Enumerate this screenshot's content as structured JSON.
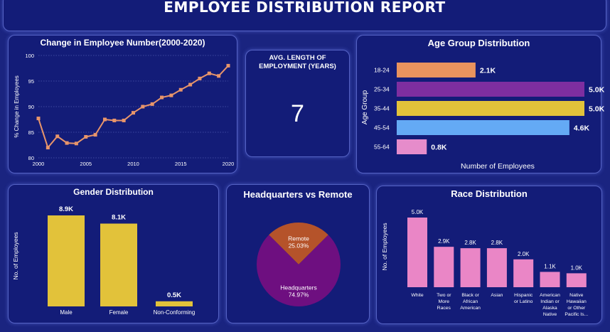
{
  "report": {
    "title": "EMPLOYEE DISTRIBUTION REPORT"
  },
  "kpi": {
    "label": "AVG. LENGTH OF EMPLOYMENT (YEARS)",
    "value": "7"
  },
  "colors": {
    "background": "#1a2480",
    "panel": "#131c78",
    "line": "#e8956a",
    "bar_yellow": "#e2c23a",
    "bar_pink": "#ea86c6",
    "pie_remote": "#b5532a",
    "pie_headquarters": "#6e0f80"
  },
  "chart_data": [
    {
      "id": "employee_change",
      "type": "line",
      "title": "Change in Employee Number(2000-2020)",
      "xlabel": "",
      "ylabel": "% Change in Employees",
      "x": [
        2000,
        2001,
        2002,
        2003,
        2004,
        2005,
        2006,
        2007,
        2008,
        2009,
        2010,
        2011,
        2012,
        2013,
        2014,
        2015,
        2016,
        2017,
        2018,
        2019,
        2020
      ],
      "values": [
        87.7,
        82.0,
        84.2,
        82.9,
        82.8,
        84.1,
        84.5,
        87.5,
        87.3,
        87.3,
        88.8,
        90.0,
        90.5,
        91.8,
        92.2,
        93.3,
        94.3,
        95.5,
        96.5,
        96.0,
        98.0
      ],
      "xticks": [
        "2000",
        "2005",
        "2010",
        "2015",
        "2020"
      ],
      "yticks": [
        "80",
        "85",
        "90",
        "95",
        "100"
      ],
      "xlim": [
        2000,
        2020
      ],
      "ylim": [
        80,
        100
      ],
      "grid": true,
      "color": "#e8956a"
    },
    {
      "id": "age_group",
      "type": "bar",
      "orientation": "horizontal",
      "title": "Age Group Distribution",
      "xlabel": "Number of Employees",
      "ylabel": "Age Group",
      "categories": [
        "18-24",
        "25-34",
        "35-44",
        "45-54",
        "55-64"
      ],
      "values": [
        2100,
        5000,
        5000,
        4600,
        800
      ],
      "labels": [
        "2.1K",
        "5.0K",
        "5.0K",
        "4.6K",
        "0.8K"
      ],
      "colors": [
        "#e9935e",
        "#7e2ea0",
        "#e2c23a",
        "#64aaf5",
        "#e68ccb"
      ],
      "xlim": [
        0,
        5000
      ]
    },
    {
      "id": "gender",
      "type": "bar",
      "title": "Gender Distribution",
      "xlabel": "",
      "ylabel": "No. of Employees",
      "categories": [
        "Male",
        "Female",
        "Non-Conforming"
      ],
      "values": [
        8900,
        8100,
        500
      ],
      "labels": [
        "8.9K",
        "8.1K",
        "0.5K"
      ],
      "color": "#e2c23a",
      "ylim": [
        0,
        8900
      ]
    },
    {
      "id": "hq_remote",
      "type": "pie",
      "title": "Headquarters vs Remote",
      "slices": [
        {
          "label": "Remote",
          "pct_text": "25.03%",
          "value": 25.03,
          "color": "#b5532a"
        },
        {
          "label": "Headquarters",
          "pct_text": "74.97%",
          "value": 74.97,
          "color": "#6e0f80"
        }
      ]
    },
    {
      "id": "race",
      "type": "bar",
      "title": "Race Distribution",
      "xlabel": "",
      "ylabel": "No. of Employees",
      "categories": [
        [
          "White"
        ],
        [
          "Two or",
          "More",
          "Races"
        ],
        [
          "Black or",
          "African",
          "American"
        ],
        [
          "Asian"
        ],
        [
          "Hispanic",
          "or Latino"
        ],
        [
          "American",
          "Indian or",
          "Alaska",
          "Native"
        ],
        [
          "Native",
          "Hawaiian",
          "or Other",
          "Pacific Is..."
        ]
      ],
      "values": [
        5000,
        2900,
        2800,
        2800,
        2000,
        1100,
        1000
      ],
      "labels": [
        "5.0K",
        "2.9K",
        "2.8K",
        "2.8K",
        "2.0K",
        "1.1K",
        "1.0K"
      ],
      "color": "#ea86c6",
      "ylim": [
        0,
        5000
      ]
    }
  ]
}
